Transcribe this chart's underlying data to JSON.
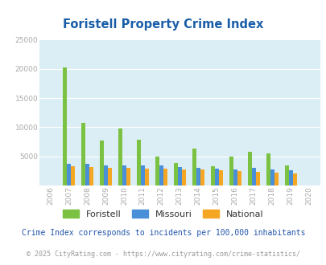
{
  "title": "Foristell Property Crime Index",
  "years": [
    2006,
    2007,
    2008,
    2009,
    2010,
    2011,
    2012,
    2013,
    2014,
    2015,
    2016,
    2017,
    2018,
    2019,
    2020
  ],
  "foristell": [
    0,
    20300,
    10800,
    7700,
    9800,
    7800,
    5000,
    3800,
    6300,
    3300,
    5000,
    5800,
    5500,
    3400,
    0
  ],
  "missouri": [
    0,
    3700,
    3700,
    3400,
    3400,
    3400,
    3400,
    3200,
    3000,
    2900,
    2800,
    3000,
    2700,
    2600,
    0
  ],
  "national": [
    0,
    3300,
    3200,
    3050,
    3000,
    2950,
    2900,
    2800,
    2700,
    2600,
    2500,
    2350,
    2200,
    2000,
    0
  ],
  "foristell_color": "#7bc142",
  "missouri_color": "#4a90d9",
  "national_color": "#f5a623",
  "plot_bg": "#dceef5",
  "title_color": "#1a5ea8",
  "ylim": [
    0,
    25000
  ],
  "yticks": [
    0,
    5000,
    10000,
    15000,
    20000,
    25000
  ],
  "subtitle": "Crime Index corresponds to incidents per 100,000 inhabitants",
  "footer": "© 2025 CityRating.com - https://www.cityrating.com/crime-statistics/",
  "subtitle_color": "#2255aa",
  "footer_color": "#999999",
  "grid_color": "#ffffff",
  "axis_label_color": "#aaaaaa"
}
